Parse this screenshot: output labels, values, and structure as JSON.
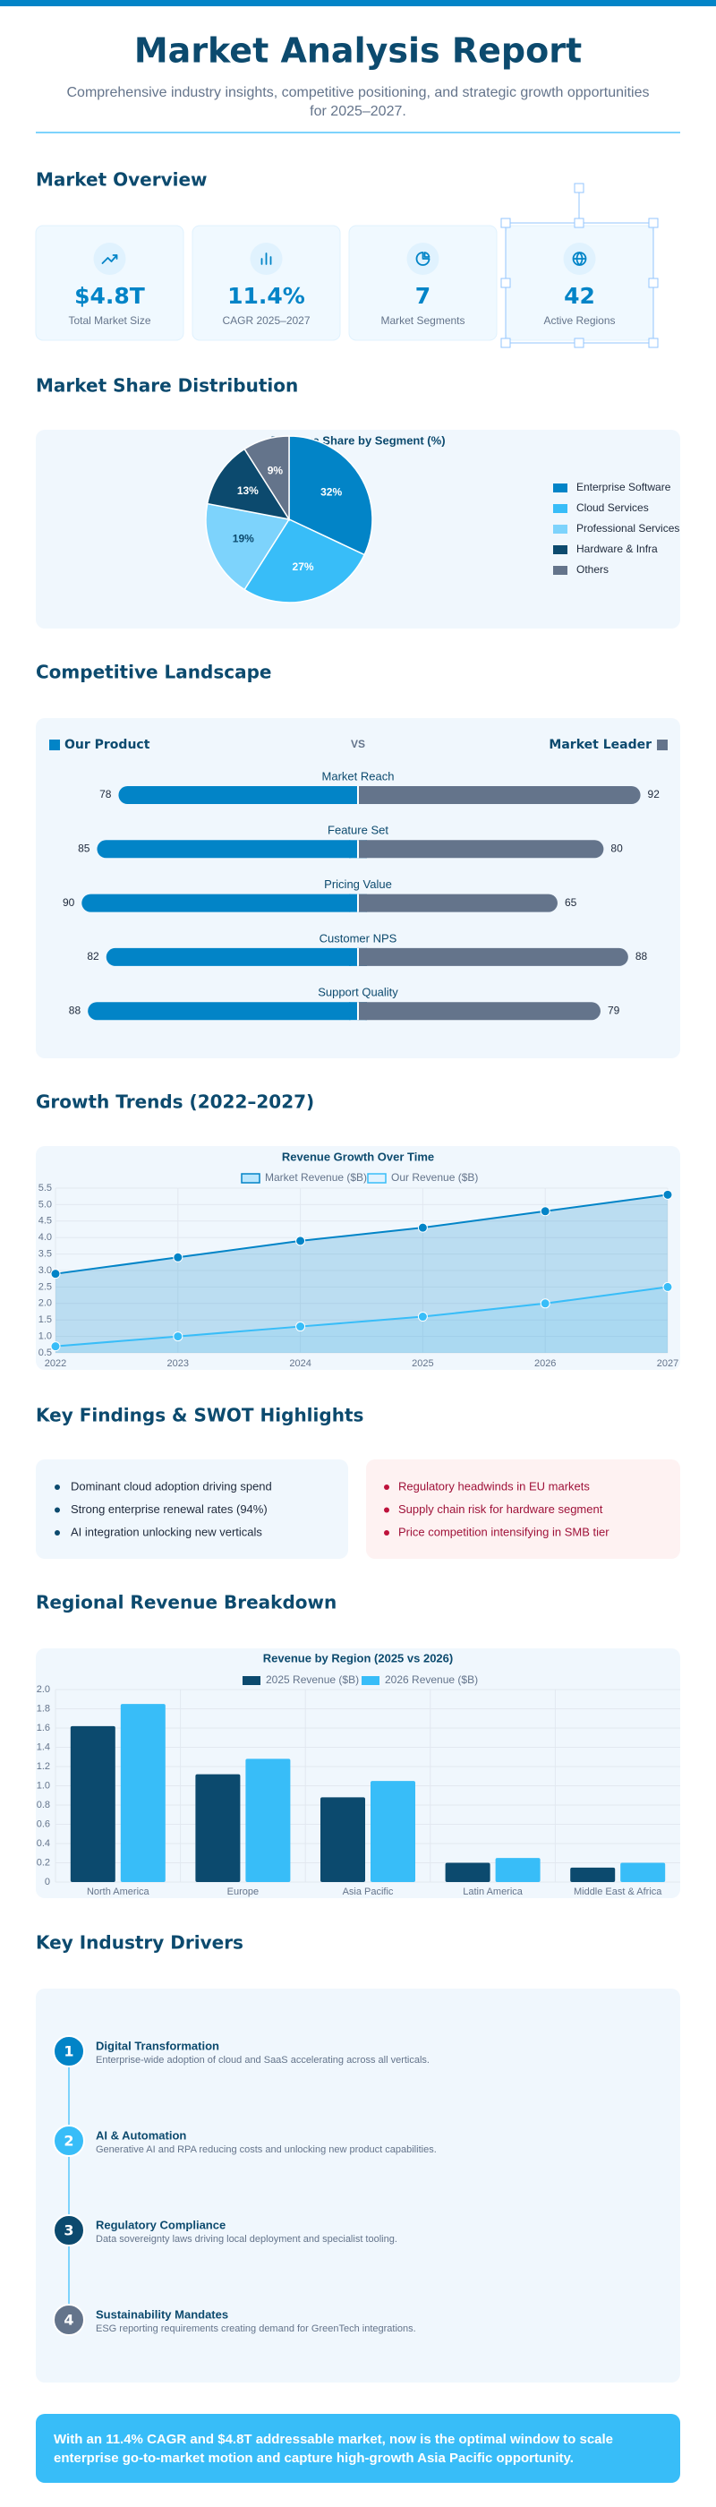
{
  "header": {
    "title": "Market Analysis Report",
    "subtitle": "Comprehensive industry insights, competitive positioning, and strategic growth opportunities for 2025–2027."
  },
  "overview": {
    "heading": "Market Overview",
    "kpis": [
      {
        "value": "$4.8T",
        "label": "Total Market Size"
      },
      {
        "value": "11.4%",
        "label": "CAGR 2025–2027"
      },
      {
        "value": "7",
        "label": "Market Segments"
      },
      {
        "value": "42",
        "label": "Active Regions"
      }
    ]
  },
  "share": {
    "heading": "Market Share Distribution"
  },
  "competitive": {
    "heading": "Competitive Landscape"
  },
  "growth": {
    "heading": "Growth Trends (2022–2027)"
  },
  "findings": {
    "heading": "Key Findings & SWOT Highlights",
    "strengths": [
      "Dominant cloud adoption driving spend",
      "Strong enterprise renewal rates (94%)",
      "AI integration unlocking new verticals"
    ],
    "risks": [
      "Regulatory headwinds in EU markets",
      "Supply chain risk for hardware segment",
      "Price competition intensifying in SMB tier"
    ]
  },
  "regional": {
    "heading": "Regional Revenue Breakdown"
  },
  "drivers": {
    "heading": "Key Industry Drivers",
    "items": [
      {
        "number": 1,
        "title": "Digital Transformation",
        "desc": "Enterprise-wide adoption of cloud and SaaS accelerating across all verticals.",
        "color": "#0284c7"
      },
      {
        "number": 2,
        "title": "AI & Automation",
        "desc": "Generative AI and RPA reducing costs and unlocking new product capabilities.",
        "color": "#38bdf8"
      },
      {
        "number": 3,
        "title": "Regulatory Compliance",
        "desc": "Data sovereignty laws driving local deployment and specialist tooling.",
        "color": "#0c4a6e"
      },
      {
        "number": 4,
        "title": "Sustainability Mandates",
        "desc": "ESG reporting requirements creating demand for GreenTech integrations.",
        "color": "#64748b"
      }
    ]
  },
  "callout": "With an 11.4% CAGR and $4.8T addressable market, now is the optimal window to scale enterprise go-to-market motion and capture high-growth Asia Pacific opportunity.",
  "chart_data": [
    {
      "type": "pie",
      "title": "Revenue Share by Segment (%)",
      "categories": [
        "Enterprise Software",
        "Cloud Services",
        "Professional Services",
        "Hardware & Infra",
        "Others"
      ],
      "values": [
        32,
        27,
        19,
        13,
        9
      ],
      "value_labels": [
        "32%",
        "27%",
        "19%",
        "13%",
        "9%"
      ],
      "colors": [
        "#0284c7",
        "#38bdf8",
        "#7dd3fc",
        "#0c4a6e",
        "#64748b"
      ]
    },
    {
      "type": "diverging",
      "center_label": "VS",
      "categories": [
        "Market Reach",
        "Feature Set",
        "Pricing Value",
        "Customer NPS",
        "Support Quality"
      ],
      "series": [
        {
          "name": "Our Product",
          "color": "#0284c7",
          "values": [
            78,
            85,
            90,
            82,
            88
          ]
        },
        {
          "name": "Market Leader",
          "color": "#64748b",
          "values": [
            92,
            80,
            65,
            88,
            79
          ]
        }
      ]
    },
    {
      "type": "line",
      "title": "Revenue Growth Over Time",
      "x": [
        2022,
        2023,
        2024,
        2025,
        2026,
        2027
      ],
      "xlim": [
        2022,
        2027
      ],
      "xticks": [
        2022,
        2023,
        2024,
        2025,
        2026,
        2027
      ],
      "ylim": [
        0.5,
        5.5
      ],
      "yticks": [
        0.5,
        {
          "value": 1,
          "label": "1.0"
        },
        1.5,
        {
          "value": 2,
          "label": "2.0"
        },
        2.5,
        {
          "value": 3,
          "label": "3.0"
        },
        3.5,
        {
          "value": 4,
          "label": "4.0"
        },
        4.5,
        {
          "value": 5,
          "label": "5.0"
        },
        5.5
      ],
      "grid": true,
      "series": [
        {
          "name": "Market Revenue ($B)",
          "color": "#0284c7",
          "values": [
            2.9,
            3.4,
            3.9,
            4.3,
            4.8,
            5.3
          ]
        },
        {
          "name": "Our Revenue ($B)",
          "color": "#38bdf8",
          "values": [
            0.7,
            1.0,
            1.3,
            1.6,
            2.0,
            2.5
          ]
        }
      ]
    },
    {
      "type": "bar",
      "title": "Revenue by Region (2025 vs 2026)",
      "categories": [
        "North America",
        "Europe",
        "Asia Pacific",
        "Latin America",
        "Middle East & Africa"
      ],
      "ylim": [
        0,
        2
      ],
      "yticks": [
        0,
        0.2,
        0.4,
        0.6,
        0.8,
        {
          "value": 1,
          "label": "1.0"
        },
        1.2,
        1.4,
        1.6,
        1.8,
        {
          "value": 2,
          "label": "2.0"
        }
      ],
      "grid": true,
      "series": [
        {
          "name": "2025 Revenue ($B)",
          "color": "#0c4a6e",
          "values": [
            1.62,
            1.12,
            0.88,
            0.2,
            0.15
          ]
        },
        {
          "name": "2026 Revenue ($B)",
          "color": "#38bdf8",
          "values": [
            1.85,
            1.28,
            1.05,
            0.25,
            0.2
          ]
        }
      ]
    }
  ]
}
